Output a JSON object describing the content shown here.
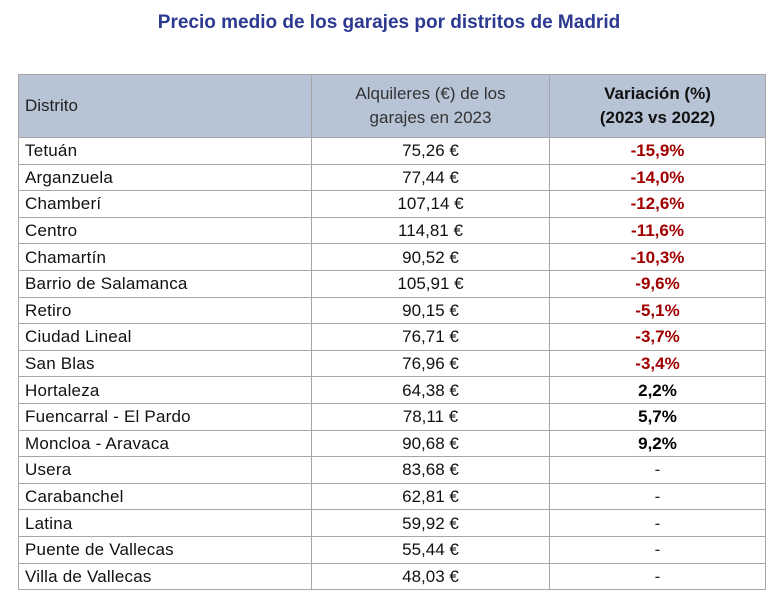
{
  "title": "Precio medio de los garajes por distritos de Madrid",
  "header": {
    "col1": "Distrito",
    "col2_line1": "Alquileres (€) de los",
    "col2_line2": "garajes en 2023",
    "col3_line1": "Variación (%)",
    "col3_line2": "(2023 vs 2022)"
  },
  "colors": {
    "title": "#2b3990",
    "header_bg": "#b7c4d6",
    "negative": "#a00000",
    "border": "#a6a6a6"
  },
  "rows": [
    {
      "district": "Tetuán",
      "price": "75,26 €",
      "variation": "-15,9%",
      "sign": "neg"
    },
    {
      "district": "Arganzuela",
      "price": "77,44 €",
      "variation": "-14,0%",
      "sign": "neg"
    },
    {
      "district": "Chamberí",
      "price": "107,14 €",
      "variation": "-12,6%",
      "sign": "neg"
    },
    {
      "district": "Centro",
      "price": "114,81 €",
      "variation": "-11,6%",
      "sign": "neg"
    },
    {
      "district": "Chamartín",
      "price": "90,52 €",
      "variation": "-10,3%",
      "sign": "neg"
    },
    {
      "district": "Barrio de Salamanca",
      "price": "105,91 €",
      "variation": "-9,6%",
      "sign": "neg"
    },
    {
      "district": "Retiro",
      "price": "90,15 €",
      "variation": "-5,1%",
      "sign": "neg"
    },
    {
      "district": "Ciudad Lineal",
      "price": "76,71 €",
      "variation": "-3,7%",
      "sign": "neg"
    },
    {
      "district": "San Blas",
      "price": "76,96 €",
      "variation": "-3,4%",
      "sign": "neg"
    },
    {
      "district": "Hortaleza",
      "price": "64,38 €",
      "variation": "2,2%",
      "sign": "pos"
    },
    {
      "district": "Fuencarral - El Pardo",
      "price": "78,11 €",
      "variation": "5,7%",
      "sign": "pos"
    },
    {
      "district": "Moncloa - Aravaca",
      "price": "90,68 €",
      "variation": "9,2%",
      "sign": "pos"
    },
    {
      "district": "Usera",
      "price": "83,68 €",
      "variation": "-",
      "sign": "none"
    },
    {
      "district": "Carabanchel",
      "price": "62,81 €",
      "variation": "-",
      "sign": "none"
    },
    {
      "district": "Latina",
      "price": "59,92 €",
      "variation": "-",
      "sign": "none"
    },
    {
      "district": "Puente de Vallecas",
      "price": "55,44 €",
      "variation": "-",
      "sign": "none"
    },
    {
      "district": "Villa de Vallecas",
      "price": "48,03 €",
      "variation": "-",
      "sign": "none"
    }
  ]
}
